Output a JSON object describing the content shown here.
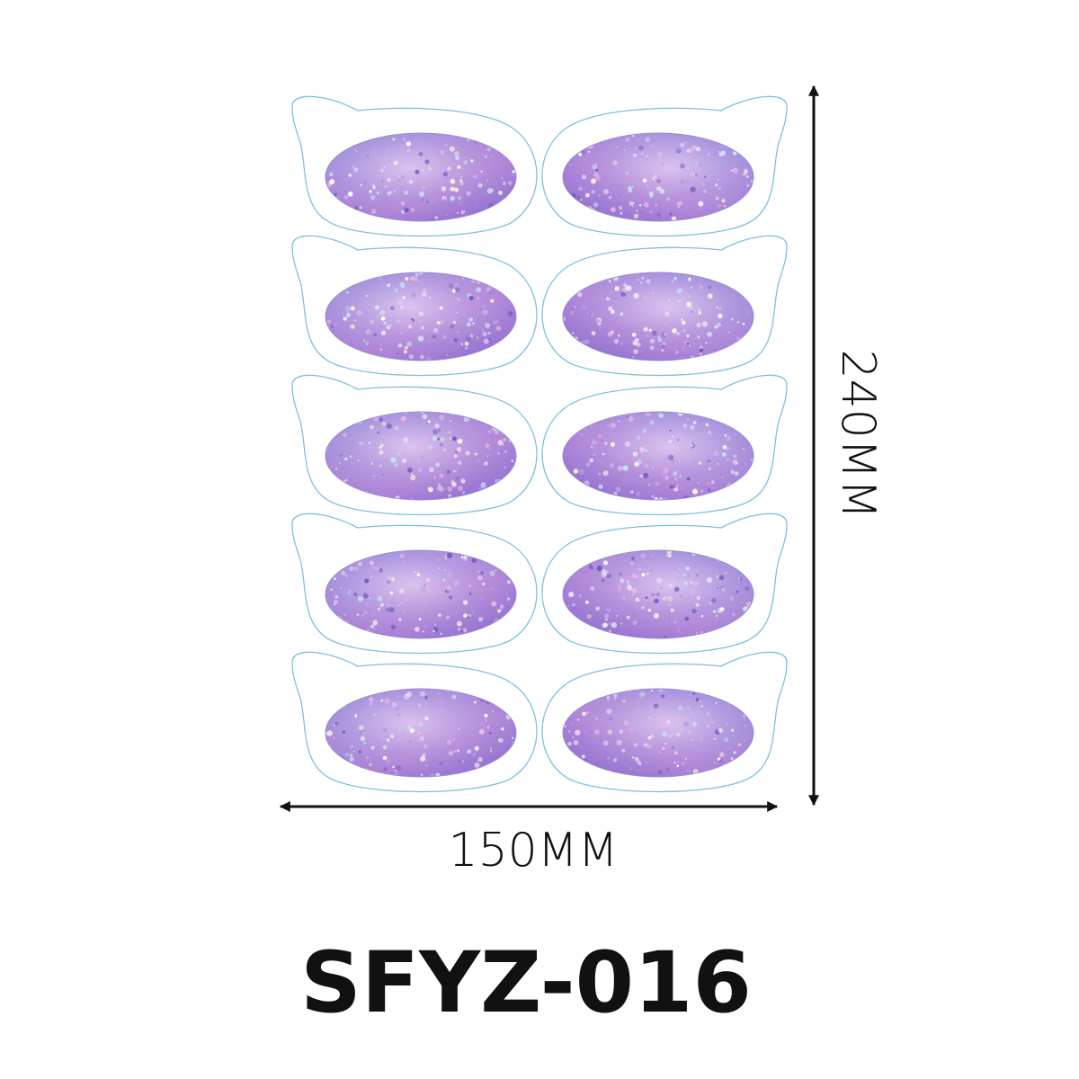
{
  "product": {
    "width_label": "150MM",
    "height_label": "240MM",
    "code": "SFYZ-016"
  }
}
